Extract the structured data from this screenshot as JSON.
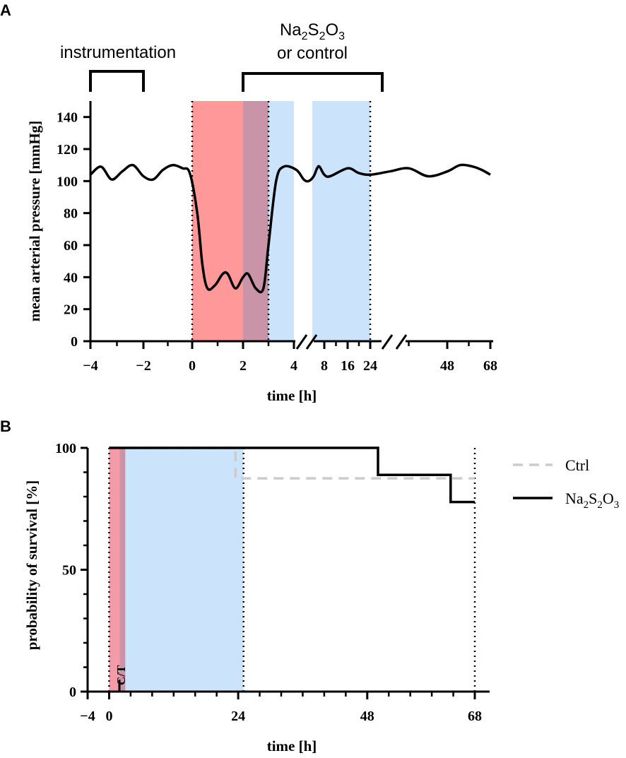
{
  "chart_data": [
    {
      "panel": "A",
      "type": "line",
      "ylabel": "mean arterial pressure [mmHg]",
      "xlabel": "time [h]",
      "ylim": [
        0,
        150
      ],
      "yticks": [
        "0",
        "20",
        "40",
        "60",
        "80",
        "100",
        "120",
        "140"
      ],
      "xticks": [
        "−4",
        "−2",
        "0",
        "2",
        "4",
        "8",
        "16",
        "24",
        "48",
        "68"
      ],
      "annotations": {
        "instrumentation": "instrumentation",
        "treatment_line1_parts": [
          "Na",
          "2",
          "S",
          "2",
          "O",
          "3"
        ],
        "treatment_line2": "or control"
      },
      "shaded_regions": [
        {
          "name": "shock",
          "color": "#ff9999",
          "from_h": 0,
          "to_h": 3
        },
        {
          "name": "treatment-1",
          "color": "#cce4fb",
          "from_h": 2,
          "to_h": 4
        },
        {
          "name": "treatment-2",
          "color": "#cce4fb",
          "from_h": 5.5,
          "to_h": 24
        }
      ],
      "vlines_h": [
        0,
        3,
        24
      ],
      "series": [
        {
          "name": "MAP",
          "points": [
            [
              -4,
              104
            ],
            [
              -3.6,
              109
            ],
            [
              -3.2,
              101
            ],
            [
              -2.8,
              106
            ],
            [
              -2.4,
              110
            ],
            [
              -2.0,
              103
            ],
            [
              -1.6,
              101
            ],
            [
              -1.2,
              107
            ],
            [
              -0.8,
              110
            ],
            [
              -0.4,
              108
            ],
            [
              -0.1,
              105
            ],
            [
              0.2,
              80
            ],
            [
              0.4,
              48
            ],
            [
              0.6,
              33
            ],
            [
              0.9,
              35
            ],
            [
              1.2,
              42
            ],
            [
              1.4,
              42
            ],
            [
              1.7,
              33
            ],
            [
              2.0,
              40
            ],
            [
              2.2,
              42
            ],
            [
              2.5,
              33
            ],
            [
              2.8,
              33
            ],
            [
              3.0,
              60
            ],
            [
              3.3,
              100
            ],
            [
              3.6,
              109
            ],
            [
              4.2,
              107
            ],
            [
              4.8,
              101
            ],
            [
              5.2,
              100
            ],
            [
              5.8,
              103
            ],
            [
              6.5,
              108
            ],
            [
              7,
              109
            ],
            [
              8,
              104
            ],
            [
              10,
              103
            ],
            [
              16,
              108
            ],
            [
              20,
              105
            ],
            [
              24,
              104
            ],
            [
              30,
              106
            ],
            [
              36,
              108
            ],
            [
              42,
              103
            ],
            [
              48,
              106
            ],
            [
              54,
              110
            ],
            [
              60,
              109
            ],
            [
              64,
              107
            ],
            [
              68,
              104
            ]
          ]
        }
      ]
    },
    {
      "panel": "B",
      "type": "line",
      "ylabel": "probability of survival [%]",
      "xlabel": "time [h]",
      "ylim": [
        0,
        100
      ],
      "xlim": [
        -4,
        68
      ],
      "yticks": [
        "0",
        "50",
        "100"
      ],
      "xticks": [
        "−4",
        "0",
        "24",
        "48",
        "68"
      ],
      "annotation_ct": "C/T",
      "shaded_regions": [
        {
          "name": "shock",
          "color": "#f49aa8",
          "from_h": 0,
          "to_h": 3
        },
        {
          "name": "treatment",
          "color": "#cce4fb",
          "from_h": 3,
          "to_h": 25
        }
      ],
      "vlines_h": [
        0,
        25,
        68
      ],
      "series": [
        {
          "name": "Ctrl",
          "style": "dashed",
          "color": "#cccccc",
          "points": [
            [
              0,
              100
            ],
            [
              23.5,
              100
            ],
            [
              23.5,
              87.5
            ],
            [
              68,
              87.5
            ]
          ]
        },
        {
          "name": "Na2S2O3",
          "label_parts": [
            "Na",
            "2",
            "S",
            "2",
            "O",
            "3"
          ],
          "style": "solid",
          "color": "#000000",
          "points": [
            [
              0,
              100
            ],
            [
              50,
              100
            ],
            [
              50,
              88.9
            ],
            [
              63.5,
              88.9
            ],
            [
              63.5,
              77.8
            ],
            [
              68,
              77.8
            ]
          ]
        }
      ],
      "legend": {
        "ctrl": "Ctrl"
      }
    }
  ],
  "panel_labels": {
    "a": "A",
    "b": "B"
  }
}
